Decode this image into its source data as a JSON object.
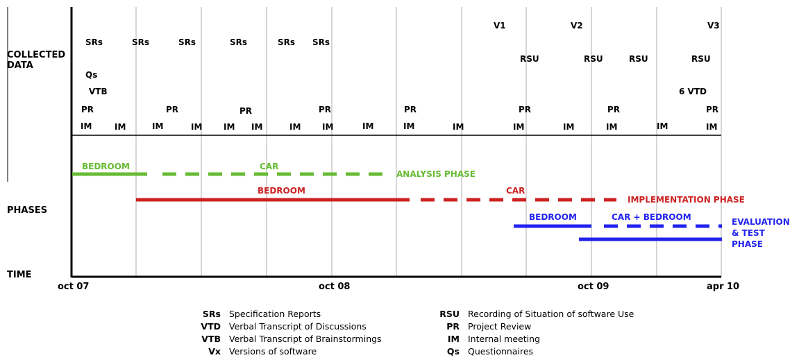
{
  "colors": {
    "analysis": "#66bb33",
    "implementation": "#cc2222",
    "evaluation": "#2222ee",
    "grid": "#c8c8c8",
    "axis": "#000000"
  },
  "row_labels": {
    "collected_data": [
      "COLLECTED",
      "DATA"
    ],
    "phases": "PHASES",
    "time": "TIME"
  },
  "time_axis": [
    "oct 07",
    "oct 08",
    "oct 09",
    "apr 10"
  ],
  "collected": [
    {
      "text": "SRs"
    },
    {
      "text": "SRs"
    },
    {
      "text": "SRs"
    },
    {
      "text": "SRs"
    },
    {
      "text": "SRs"
    },
    {
      "text": "SRs"
    },
    {
      "text": "Qs"
    },
    {
      "text": "VTB"
    },
    {
      "text": "PR"
    },
    {
      "text": "PR"
    },
    {
      "text": "PR"
    },
    {
      "text": "PR"
    },
    {
      "text": "PR"
    },
    {
      "text": "PR"
    },
    {
      "text": "PR"
    },
    {
      "text": "PR"
    },
    {
      "text": "IM"
    },
    {
      "text": "IM"
    },
    {
      "text": "IM"
    },
    {
      "text": "IM"
    },
    {
      "text": "IM"
    },
    {
      "text": "IM"
    },
    {
      "text": "IM"
    },
    {
      "text": "IM"
    },
    {
      "text": "IM"
    },
    {
      "text": "IM"
    },
    {
      "text": "IM"
    },
    {
      "text": "IM"
    },
    {
      "text": "IM"
    },
    {
      "text": "IM"
    },
    {
      "text": "IM"
    },
    {
      "text": "IM"
    },
    {
      "text": "V1"
    },
    {
      "text": "V2"
    },
    {
      "text": "V3"
    },
    {
      "text": "RSU"
    },
    {
      "text": "RSU"
    },
    {
      "text": "RSU"
    },
    {
      "text": "RSU"
    },
    {
      "text": "6 VTD"
    }
  ],
  "phases": {
    "analysis": {
      "sub1": "BEDROOM",
      "sub2": "CAR",
      "name": "ANALYSIS PHASE"
    },
    "implementation": {
      "sub1": "BEDROOM",
      "sub2": "CAR",
      "name": "IMPLEMENTATION PHASE"
    },
    "evaluation": {
      "sub1": "BEDROOM",
      "sub2": "CAR + BEDROOM",
      "name": [
        "EVALUATION",
        "& TEST",
        "PHASE"
      ]
    }
  },
  "legend": {
    "left": [
      {
        "abbr": "SRs",
        "text": "Specification Reports"
      },
      {
        "abbr": "VTD",
        "text": "Verbal Transcript of Discussions"
      },
      {
        "abbr": "VTB",
        "text": "Verbal Transcript of Brainstormings"
      },
      {
        "abbr": "Vx",
        "text": "Versions of software"
      }
    ],
    "right": [
      {
        "abbr": "RSU",
        "text": "Recording of Situation of software Use"
      },
      {
        "abbr": "PR",
        "text": "Project Review"
      },
      {
        "abbr": "IM",
        "text": "Internal meeting"
      },
      {
        "abbr": "Qs",
        "text": "Questionnaires"
      }
    ]
  }
}
